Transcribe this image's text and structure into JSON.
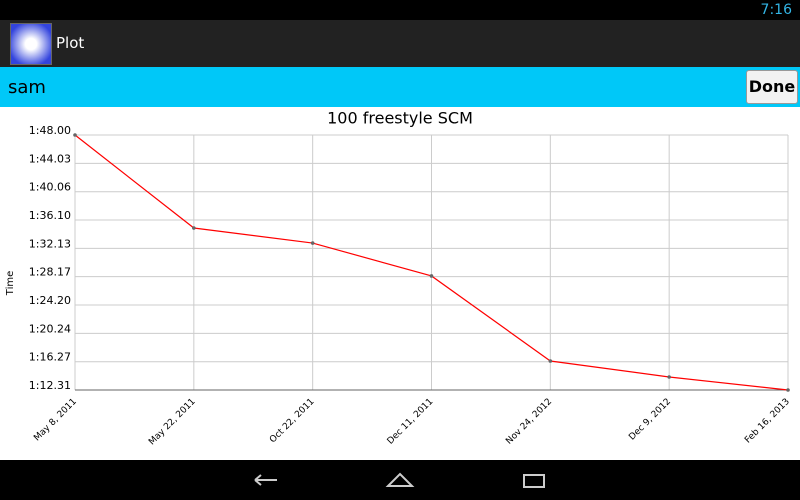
{
  "status_bar": {
    "time": "7:16"
  },
  "action_bar": {
    "title": "Plot"
  },
  "input_bar": {
    "text": "sam",
    "button": "Done"
  },
  "chart_data": {
    "type": "line",
    "title": "100 freestyle SCM",
    "y_label": "Time",
    "categories": [
      "May 8, 2011",
      "May 22, 2011",
      "Oct 22, 2011",
      "Dec 11, 2011",
      "Nov 24, 2012",
      "Dec 9, 2012",
      "Feb 16, 2013"
    ],
    "series": [
      {
        "name": "100 freestyle SCM",
        "color": "#ff0000",
        "values": [
          108.0,
          94.98,
          92.88,
          88.27,
          76.37,
          74.13,
          72.31
        ]
      }
    ],
    "ylim": [
      72.31,
      108.0
    ],
    "yticks": [
      {
        "value": 72.31,
        "label": "1:12.31"
      },
      {
        "value": 76.27,
        "label": "1:16.27"
      },
      {
        "value": 80.24,
        "label": "1:20.24"
      },
      {
        "value": 84.2,
        "label": "1:24.20"
      },
      {
        "value": 88.17,
        "label": "1:28.17"
      },
      {
        "value": 92.13,
        "label": "1:32.13"
      },
      {
        "value": 96.1,
        "label": "1:36.10"
      },
      {
        "value": 100.06,
        "label": "1:40.06"
      },
      {
        "value": 104.03,
        "label": "1:44.03"
      },
      {
        "value": 108.0,
        "label": "1:48.00"
      }
    ],
    "grid": true
  }
}
